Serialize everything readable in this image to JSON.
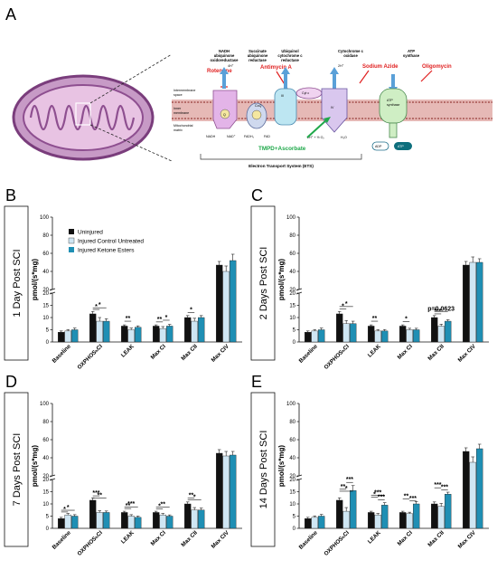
{
  "panel_a": {
    "letter": "A",
    "complexes": [
      {
        "id": "I",
        "title_lines": [
          "NADH",
          "ubiquinone",
          "oxidoreductase"
        ]
      },
      {
        "id": "II",
        "title_lines": [
          "Succinate",
          "ubiquinone",
          "reductase"
        ]
      },
      {
        "id": "III",
        "title_lines": [
          "Ubiquinol",
          "cytochrome c",
          "reductase"
        ]
      },
      {
        "id": "IV",
        "title_lines": [
          "Cytochrome c",
          "oxidase"
        ]
      },
      {
        "id": "V",
        "title_lines": [
          "ATP",
          "synthase"
        ]
      }
    ],
    "inhibitors": {
      "rotenone": "Rotenone",
      "antimycin": "Antimycin A",
      "azide": "Sodium Azide",
      "oligomycin": "Oligomycin"
    },
    "substrate": "TMPD+Ascorbate",
    "space_labels": {
      "ims": [
        "Intermembrane",
        "space"
      ],
      "inner": [
        "Inner",
        "membrane"
      ],
      "matrix": [
        "Mitochondrial",
        "matrix"
      ]
    },
    "ets_label": "Electron Transport System (ETS)",
    "inner_labels": {
      "cplx3": "III",
      "cplx4": "IV",
      "cytc": "Cyt c",
      "atp_box": [
        "ATP",
        "synthase"
      ],
      "q": "Q",
      "coq": "CoQ",
      "hplus": "4H⁺",
      "hplus2": "2H⁺",
      "adp": "ADP",
      "atp": "ATP",
      "nadh": "NADH",
      "nad": "NAD⁺",
      "fadh": "FADH₂",
      "fad": "FAD",
      "o2": "2H⁺ + ½ O₂",
      "h2o": "H₂O"
    }
  },
  "colors": {
    "uninjured": "#111111",
    "control": "#cfe6f3",
    "ketone": "#1f8fb4"
  },
  "legend": {
    "items": [
      "Uninjured",
      "Injured Control Untreated",
      "Injured Ketone Esters"
    ]
  },
  "chart_data": [
    {
      "panel": "B",
      "type": "bar",
      "side_label": "1 Day Post SCI",
      "ylabel": "pmol/(s*mg)",
      "categories": [
        "Baseline",
        "OXPHOSₕCI",
        "LEAK",
        "Max CI",
        "Max CII",
        "Max CIV"
      ],
      "broken_axis": {
        "lower": [
          0,
          20
        ],
        "upper": [
          20,
          100
        ]
      },
      "lower_ticks": [
        0,
        5,
        10,
        15,
        20
      ],
      "upper_ticks": [
        20,
        40,
        60,
        80,
        100
      ],
      "series": [
        {
          "values": [
            4,
            11.5,
            6.5,
            6.5,
            10,
            47
          ]
        },
        {
          "values": [
            4.5,
            8.5,
            5,
            5.5,
            8.5,
            40
          ]
        },
        {
          "values": [
            5,
            8.5,
            6,
            6.5,
            10,
            52
          ]
        }
      ],
      "errors": [
        [
          0.5,
          1,
          0.5,
          0.5,
          0.8,
          4
        ],
        [
          0.6,
          1.5,
          0.7,
          0.8,
          1.2,
          6
        ],
        [
          0.7,
          1,
          0.6,
          0.7,
          0.8,
          7
        ]
      ],
      "annotations": [
        {
          "cat": 1,
          "from": 0,
          "to": 2,
          "text": "*",
          "y": 14
        },
        {
          "cat": 1,
          "from": 0,
          "to": 1,
          "text": "*",
          "y": 13.3
        },
        {
          "cat": 2,
          "from": 0,
          "to": 1,
          "text": "**",
          "y": 8.5
        },
        {
          "cat": 3,
          "from": 0,
          "to": 1,
          "text": "**",
          "y": 8.2
        },
        {
          "cat": 3,
          "from": 1,
          "to": 2,
          "text": "*",
          "y": 8.9
        },
        {
          "cat": 4,
          "from": 0,
          "to": 1,
          "text": "*",
          "y": 12
        }
      ]
    },
    {
      "panel": "C",
      "type": "bar",
      "side_label": "2 Days Post SCI",
      "ylabel": "pmol/(s*mg)",
      "categories": [
        "Baseline",
        "OXPHOSₕCI",
        "LEAK",
        "Max CI",
        "Max CII",
        "Max CIV"
      ],
      "broken_axis": {
        "lower": [
          0,
          20
        ],
        "upper": [
          20,
          100
        ]
      },
      "lower_ticks": [
        0,
        5,
        10,
        15,
        20
      ],
      "upper_ticks": [
        20,
        40,
        60,
        80,
        100
      ],
      "series": [
        {
          "values": [
            4,
            11.5,
            6.5,
            6.5,
            10,
            47
          ]
        },
        {
          "values": [
            4.5,
            7.5,
            4.5,
            5,
            6.5,
            50
          ]
        },
        {
          "values": [
            5,
            7.5,
            4.5,
            5,
            8.5,
            50
          ]
        }
      ],
      "errors": [
        [
          0.5,
          1,
          0.5,
          0.5,
          0.8,
          4
        ],
        [
          0.6,
          1.3,
          0.6,
          0.6,
          0.8,
          6
        ],
        [
          0.7,
          1,
          0.6,
          0.6,
          0.6,
          4
        ]
      ],
      "annotations": [
        {
          "cat": 1,
          "from": 0,
          "to": 1,
          "text": "*",
          "y": 13.5
        },
        {
          "cat": 1,
          "from": 0,
          "to": 2,
          "text": "*",
          "y": 14.5
        },
        {
          "cat": 2,
          "from": 0,
          "to": 1,
          "text": "**",
          "y": 8.5
        },
        {
          "cat": 3,
          "from": 0,
          "to": 1,
          "text": "*",
          "y": 8.3
        },
        {
          "cat": 4,
          "from": 0,
          "to": 1,
          "text": "***",
          "y": 11.5
        },
        {
          "cat": 4,
          "from": 0,
          "to": 2,
          "text": "p=0.0623",
          "y": 12.5
        }
      ]
    },
    {
      "panel": "D",
      "type": "bar",
      "side_label": "7 Days Post SCI",
      "ylabel": "pmol/(s*mg)",
      "categories": [
        "Baseline",
        "OXPHOSₕCI",
        "LEAK",
        "Max CI",
        "Max CII",
        "Max CIV"
      ],
      "broken_axis": {
        "lower": [
          0,
          20
        ],
        "upper": [
          20,
          100
        ]
      },
      "lower_ticks": [
        0,
        5,
        10,
        15,
        20
      ],
      "upper_ticks": [
        20,
        40,
        60,
        80,
        100
      ],
      "series": [
        {
          "values": [
            4,
            11.5,
            6.5,
            6.5,
            10,
            45
          ]
        },
        {
          "values": [
            5.5,
            6.5,
            5,
            5.5,
            7.5,
            42
          ]
        },
        {
          "values": [
            5,
            6.5,
            4.5,
            5,
            7.5,
            43
          ]
        }
      ],
      "errors": [
        [
          0.5,
          1,
          0.5,
          0.5,
          0.8,
          4
        ],
        [
          0.6,
          0.7,
          0.6,
          0.6,
          1,
          5
        ],
        [
          0.6,
          0.6,
          0.5,
          0.5,
          0.8,
          4
        ]
      ],
      "annotations": [
        {
          "cat": 0,
          "from": 0,
          "to": 1,
          "text": "*",
          "y": 6.7
        },
        {
          "cat": 0,
          "from": 0,
          "to": 2,
          "text": "*",
          "y": 7.4
        },
        {
          "cat": 1,
          "from": 0,
          "to": 1,
          "text": "***",
          "y": 13.3
        },
        {
          "cat": 1,
          "from": 0,
          "to": 2,
          "text": "**",
          "y": 12.4
        },
        {
          "cat": 2,
          "from": 0,
          "to": 1,
          "text": "**",
          "y": 8.1
        },
        {
          "cat": 2,
          "from": 0,
          "to": 2,
          "text": "***",
          "y": 8.8
        },
        {
          "cat": 3,
          "from": 0,
          "to": 1,
          "text": "*",
          "y": 8.0
        },
        {
          "cat": 3,
          "from": 0,
          "to": 2,
          "text": "**",
          "y": 8.7
        },
        {
          "cat": 4,
          "from": 0,
          "to": 1,
          "text": "**",
          "y": 12.4
        },
        {
          "cat": 4,
          "from": 0,
          "to": 2,
          "text": "*",
          "y": 11.6
        }
      ]
    },
    {
      "panel": "E",
      "type": "bar",
      "side_label": "14 Days Post SCI",
      "ylabel": "pmol/(s*mg)",
      "categories": [
        "Baseline",
        "OXPHOSₕCI",
        "LEAK",
        "Max CI",
        "Max CII",
        "Max CIV"
      ],
      "broken_axis": {
        "lower": [
          0,
          20
        ],
        "upper": [
          20,
          100
        ]
      },
      "lower_ticks": [
        0,
        5,
        10,
        15,
        20
      ],
      "upper_ticks": [
        20,
        40,
        60,
        80,
        100
      ],
      "series": [
        {
          "values": [
            4,
            11.5,
            6.5,
            6.5,
            10,
            47
          ]
        },
        {
          "values": [
            4.5,
            7,
            5.5,
            6,
            9,
            35
          ]
        },
        {
          "values": [
            5,
            15.5,
            9.5,
            10,
            14,
            50
          ]
        }
      ],
      "errors": [
        [
          0.5,
          1,
          0.5,
          0.5,
          0.8,
          4
        ],
        [
          0.6,
          1.5,
          0.6,
          0.6,
          1.2,
          6
        ],
        [
          0.7,
          2,
          1,
          1,
          0.8,
          5
        ]
      ],
      "annotations": [
        {
          "cat": 1,
          "from": 0,
          "to": 1,
          "text": "**",
          "y": 16.0
        },
        {
          "cat": 1,
          "from": 1,
          "to": 2,
          "text": "***",
          "y": 18.8
        },
        {
          "cat": 1,
          "from": 0,
          "to": 2,
          "text": "*",
          "y": 15.2
        },
        {
          "cat": 2,
          "from": 0,
          "to": 1,
          "text": "*",
          "y": 12.8
        },
        {
          "cat": 2,
          "from": 0,
          "to": 2,
          "text": "***",
          "y": 13.6
        },
        {
          "cat": 2,
          "from": 1,
          "to": 2,
          "text": "***",
          "y": 11.6
        },
        {
          "cat": 3,
          "from": 0,
          "to": 1,
          "text": "**",
          "y": 12.0
        },
        {
          "cat": 3,
          "from": 1,
          "to": 2,
          "text": "***",
          "y": 11.2
        },
        {
          "cat": 4,
          "from": 0,
          "to": 1,
          "text": "***",
          "y": 16.6
        },
        {
          "cat": 4,
          "from": 1,
          "to": 2,
          "text": "***",
          "y": 15.7
        }
      ]
    }
  ]
}
